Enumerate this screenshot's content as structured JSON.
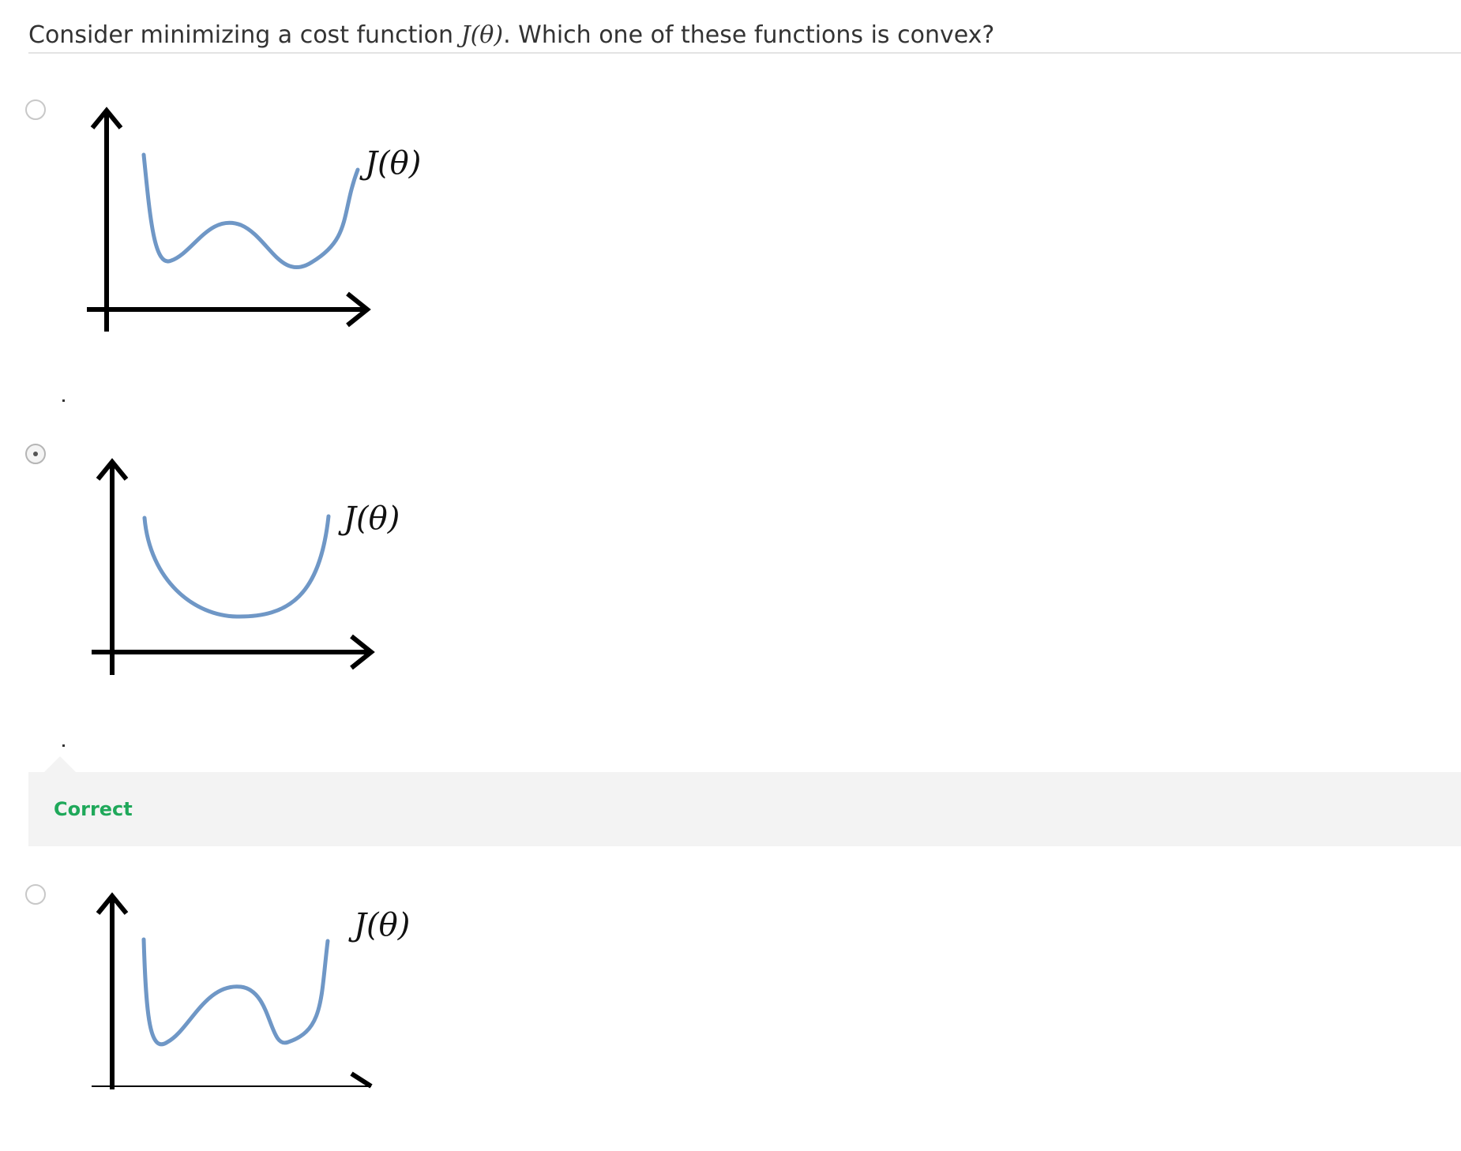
{
  "question": {
    "prefix": "Consider minimizing a cost function ",
    "math": "J(θ)",
    "suffix": ". Which one of these functions is convex?"
  },
  "options": [
    {
      "selected": false,
      "plot_label": "J(θ)",
      "curve": "non-convex"
    },
    {
      "selected": true,
      "plot_label": "J(θ)",
      "curve": "convex"
    },
    {
      "selected": false,
      "plot_label": "J(θ)",
      "curve": "non-convex"
    }
  ],
  "feedback": {
    "label": "Correct",
    "color": "#1fa85a"
  },
  "colors": {
    "curve": "#6f97c6",
    "axis": "#000000",
    "feedback_bg": "#f3f3f3"
  }
}
